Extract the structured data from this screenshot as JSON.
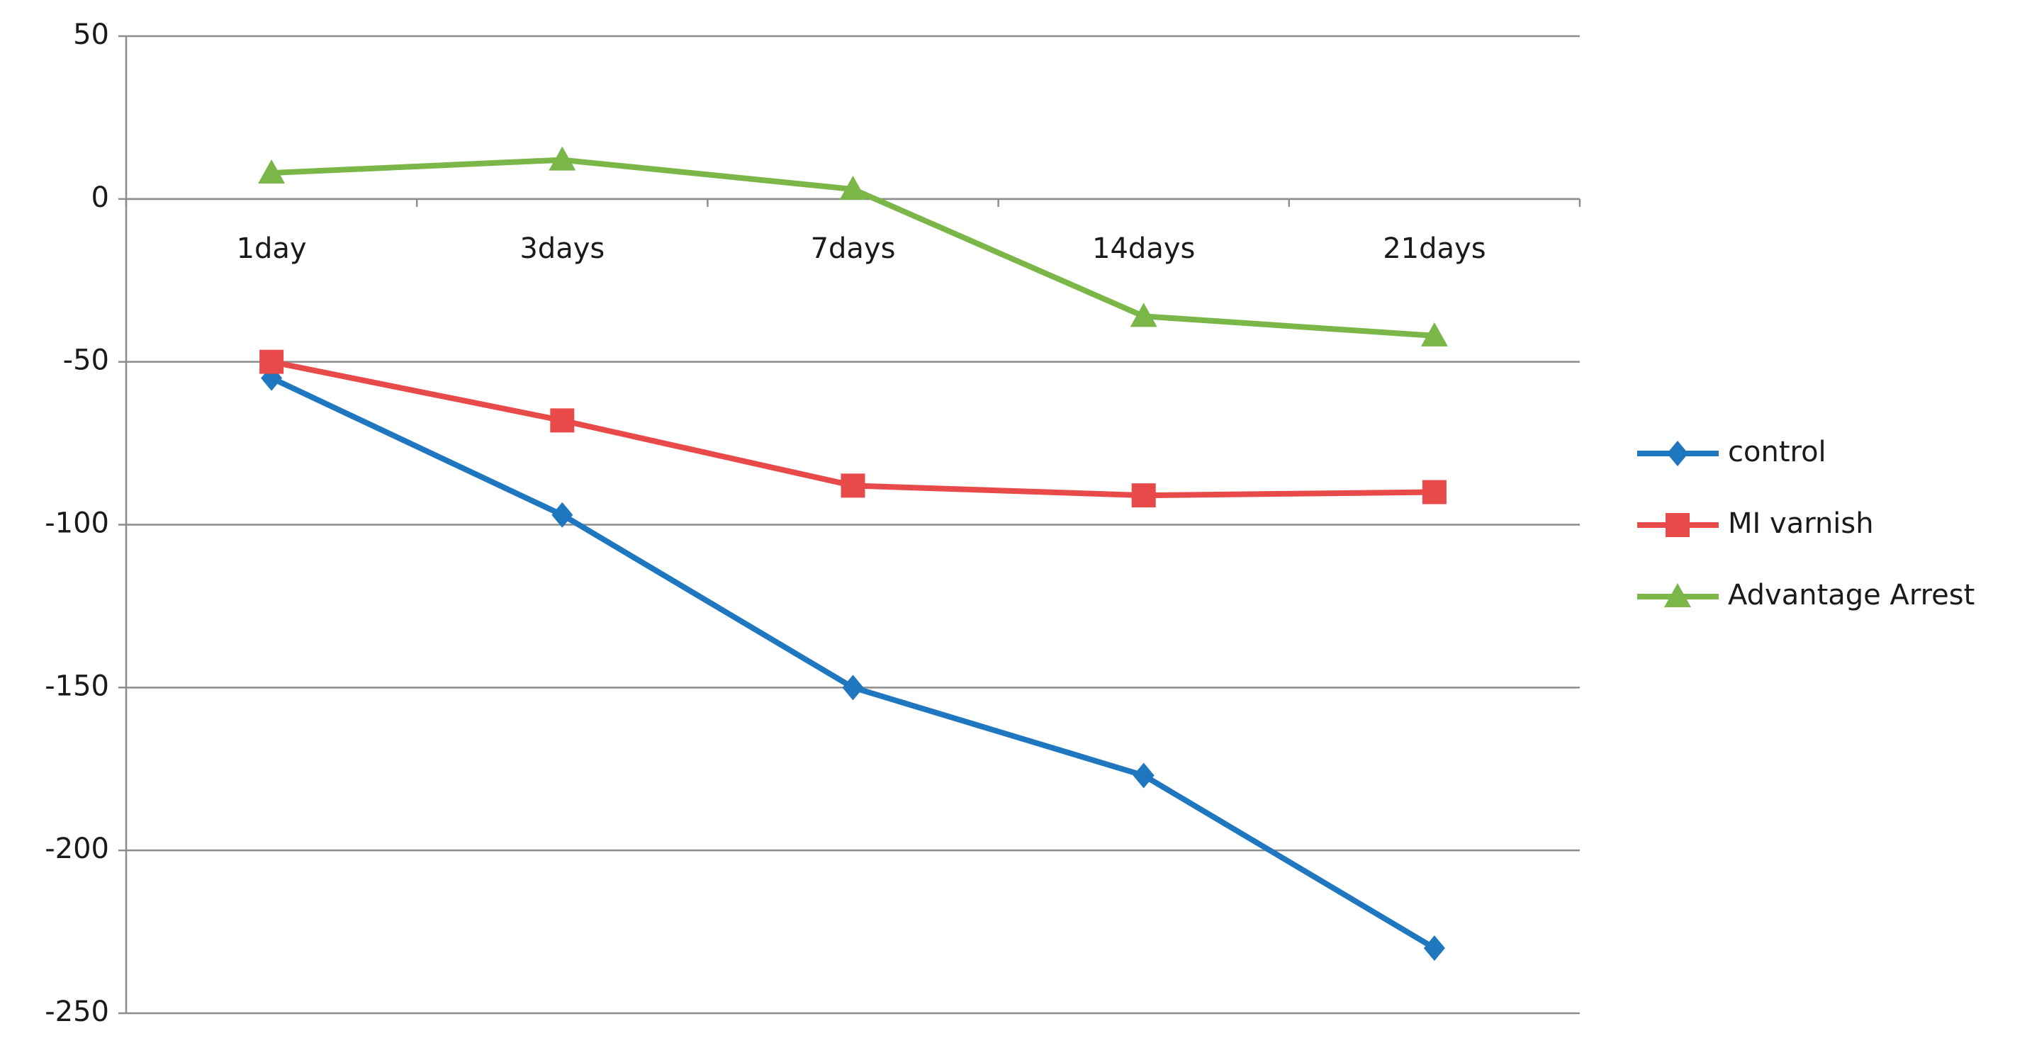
{
  "chart_data": {
    "type": "line",
    "categories": [
      "1day",
      "3days",
      "7days",
      "14days",
      "21days"
    ],
    "series": [
      {
        "name": "control",
        "color": "#1f77c0",
        "marker": "diamond",
        "values": [
          -55,
          -97,
          -150,
          -177,
          -230
        ]
      },
      {
        "name": "MI varnish",
        "color": "#e84a4a",
        "marker": "square",
        "values": [
          -50,
          -68,
          -88,
          -91,
          -90
        ]
      },
      {
        "name": "Advantage Arrest",
        "color": "#7ab648",
        "marker": "triangle",
        "values": [
          8,
          12,
          3,
          -36,
          -42
        ]
      }
    ],
    "ylim": [
      -250,
      50
    ],
    "yticks": [
      -250,
      -200,
      -150,
      -100,
      -50,
      0,
      50
    ],
    "grid": true,
    "legend": "right"
  }
}
